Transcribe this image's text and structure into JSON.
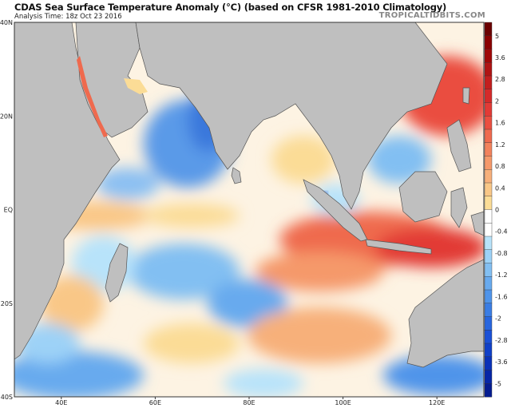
{
  "header": {
    "title": "CDAS Sea Surface Temperature Anomaly (°C) (based on CFSR 1981-2010 Climatology)",
    "analysis_time": "Analysis Time: 18z Oct 23 2016",
    "brand": "TROPICALTIDBITS.COM"
  },
  "map": {
    "region": "Indian Ocean",
    "lon_range": [
      30,
      130
    ],
    "lat_range": [
      -40,
      40
    ],
    "lat_labels": [
      "40N",
      "20N",
      "EQ",
      "20S",
      "40S"
    ],
    "lon_labels": [
      "40E",
      "60E",
      "80E",
      "100E",
      "120E"
    ],
    "land_color": "#bfbfbf"
  },
  "colorbar": {
    "unit": "°C",
    "labels": [
      "5",
      "3.6",
      "2.8",
      "2",
      "1.6",
      "1.2",
      "0.8",
      "0.4",
      "0",
      "-0.4",
      "-0.8",
      "-1.2",
      "-1.6",
      "-2",
      "-2.8",
      "-3.6",
      "-5"
    ],
    "colors": [
      "#6b0000",
      "#8a0000",
      "#a00808",
      "#b01414",
      "#c21e1e",
      "#d42a2a",
      "#e23a36",
      "#ea4e40",
      "#ef6a4e",
      "#f2825c",
      "#f5996a",
      "#f7b07a",
      "#f9c787",
      "#fbdc96",
      "#ffffff",
      "#ffffff",
      "#b8e3fa",
      "#9dd2f7",
      "#82bff2",
      "#68aaee",
      "#4f94ea",
      "#3a7de4",
      "#2866de",
      "#1a50d6",
      "#1040c8",
      "#0a32b8",
      "#0626a6",
      "#041c90"
    ]
  }
}
